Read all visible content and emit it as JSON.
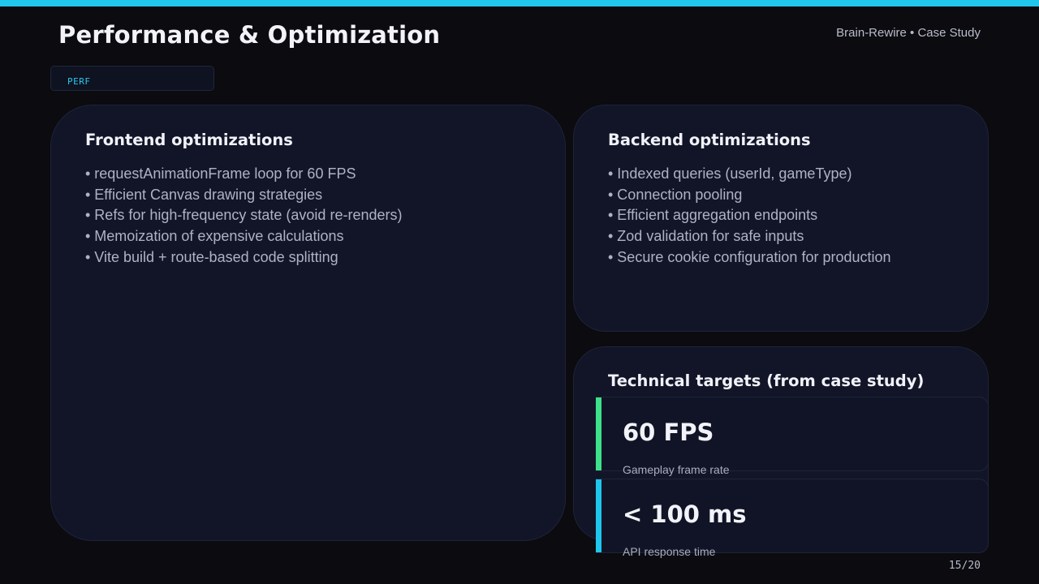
{
  "header": {
    "title": "Performance & Optimization",
    "deck_label": "Brain-Rewire • Case Study"
  },
  "tag": "PERF",
  "frontend": {
    "title": "Frontend optimizations",
    "bullets": [
      "• requestAnimationFrame loop for 60 FPS",
      "• Efficient Canvas drawing strategies",
      "• Refs for high-frequency state (avoid re-renders)",
      "• Memoization of expensive calculations",
      "• Vite build + route-based code splitting"
    ]
  },
  "backend": {
    "title": "Backend optimizations",
    "bullets": [
      "• Indexed queries (userId, gameType)",
      "• Connection pooling",
      "• Efficient aggregation endpoints",
      "• Zod validation for safe inputs",
      "• Secure cookie configuration for production"
    ]
  },
  "targets": {
    "title": "Technical targets (from case study)",
    "metrics": [
      {
        "value": "60 FPS",
        "label": "Gameplay frame rate",
        "accent_color": "#3fe08a"
      },
      {
        "value": "< 100 ms",
        "label": "API response time",
        "accent_color": "#1ec6ee"
      }
    ]
  },
  "footer": {
    "page_number": "15/20"
  },
  "colors": {
    "accent": "#22c7ee",
    "background": "#0b0b10",
    "card": "#121528"
  }
}
